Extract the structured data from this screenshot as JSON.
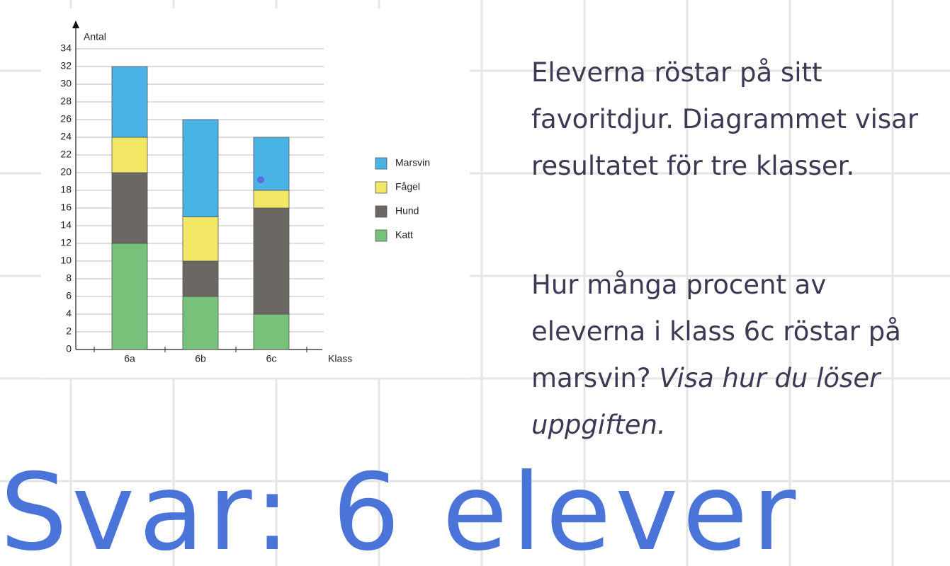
{
  "chart_data": {
    "type": "bar",
    "stacked": true,
    "y_label": "Antal",
    "x_label": "Klass",
    "categories": [
      "6a",
      "6b",
      "6c"
    ],
    "series": [
      {
        "name": "Katt",
        "color": "#77c17a",
        "values": [
          12,
          6,
          4
        ]
      },
      {
        "name": "Hund",
        "color": "#6b6864",
        "values": [
          8,
          4,
          12
        ]
      },
      {
        "name": "Fågel",
        "color": "#f2e866",
        "values": [
          4,
          5,
          2
        ]
      },
      {
        "name": "Marsvin",
        "color": "#4ab3e6",
        "values": [
          8,
          11,
          6
        ]
      }
    ],
    "ylim": [
      0,
      34
    ],
    "yticks": [
      0,
      2,
      4,
      6,
      8,
      10,
      12,
      14,
      16,
      18,
      20,
      22,
      24,
      26,
      28,
      30,
      32,
      34
    ],
    "grid": true,
    "legend": "right"
  },
  "question": {
    "paragraph1": "Eleverna röstar på sitt favoritdjur. Diagrammet visar resultatet för tre klasser.",
    "paragraph2": "Hur många procent av eleverna i klass 6c röstar på marsvin?",
    "paragraph2_italic": "Visa hur du löser uppgiften."
  },
  "handwriting": "Svar: 6 elever"
}
